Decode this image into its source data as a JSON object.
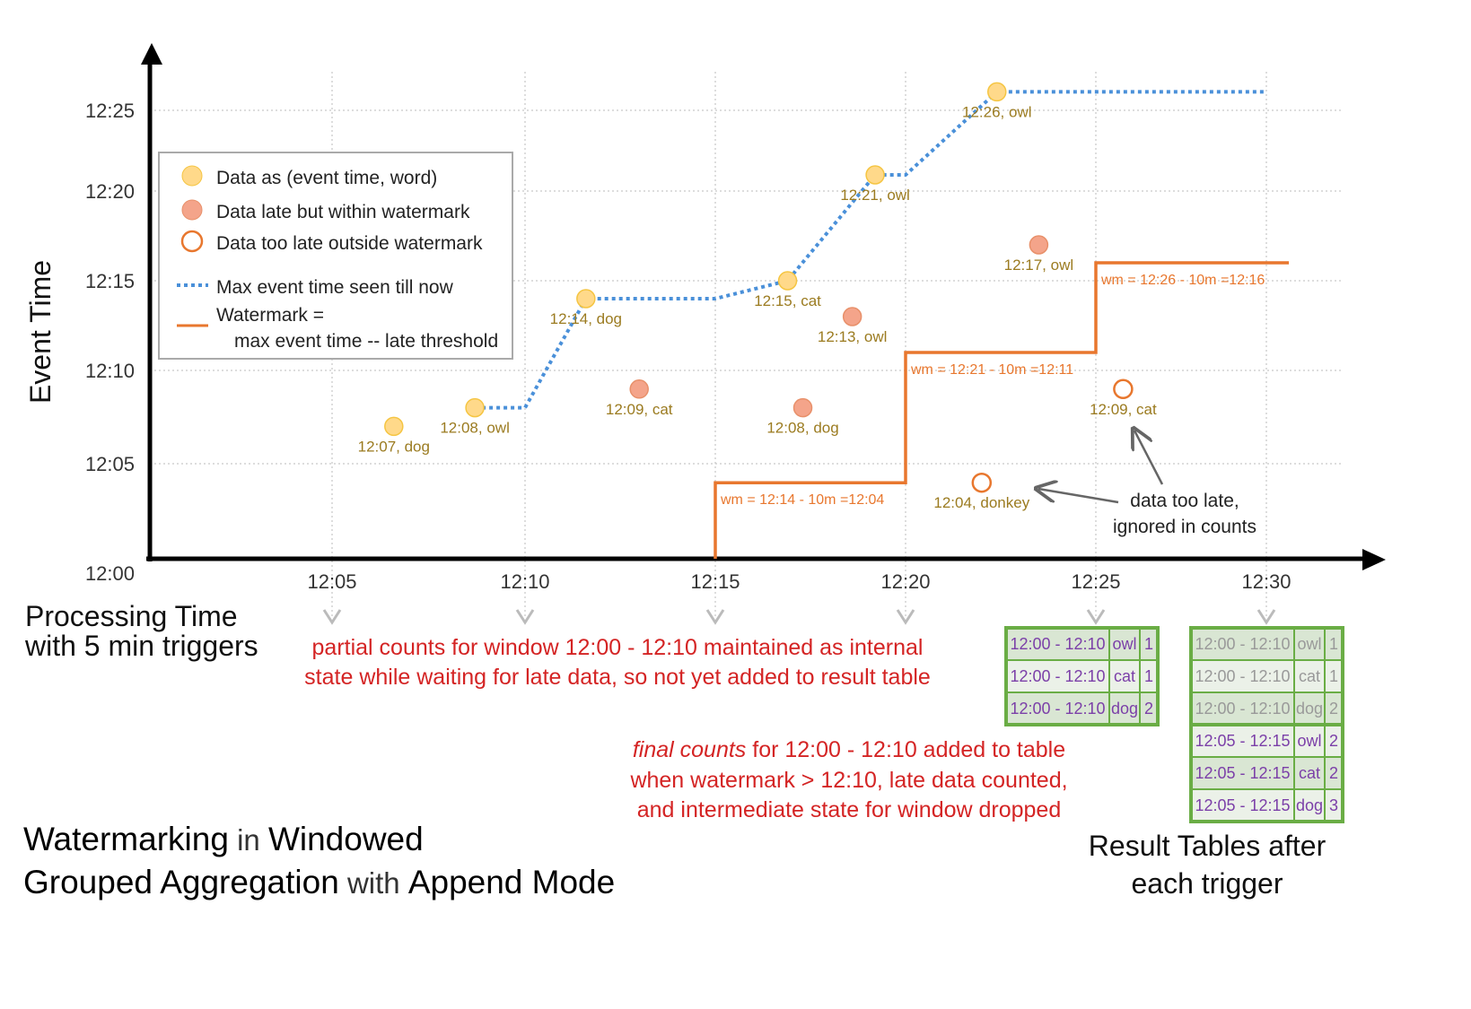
{
  "colors": {
    "on_time": "#ffd98a",
    "late": "#f4a48a",
    "too_late": "#e8772e",
    "max_line": "#4a90d9",
    "watermark": "#e8772e",
    "table_border": "#6aad45",
    "table_fill_a": "#d9e6d3",
    "table_fill_b": "#ebf1e8",
    "table_text": "#7b3fa8",
    "table_text_old": "#999999",
    "note_red": "#d42424"
  },
  "axes": {
    "y_label": "Event Time",
    "x_label_lines": [
      "Processing Time",
      "with 5 min triggers"
    ],
    "y_ticks": [
      "12:00",
      "12:05",
      "12:10",
      "12:15",
      "12:20",
      "12:25"
    ],
    "x_ticks": [
      "12:05",
      "12:10",
      "12:15",
      "12:20",
      "12:25",
      "12:30"
    ]
  },
  "legend": {
    "items": [
      {
        "type": "on_time",
        "label": "Data as (event time, word)"
      },
      {
        "type": "late",
        "label": "Data late but within watermark"
      },
      {
        "type": "too_late",
        "label": "Data too late outside watermark"
      },
      {
        "type": "max_line",
        "label": "Max event time seen till now"
      },
      {
        "type": "watermark",
        "label": "Watermark ="
      },
      {
        "type": "none",
        "label": "max event time -- late threshold"
      }
    ]
  },
  "chart_data": {
    "type": "scatter",
    "xlabel": "Processing Time",
    "ylabel": "Event Time",
    "points": [
      {
        "proc": 6.6,
        "event": 7,
        "label": "12:07, dog",
        "type": "on_time"
      },
      {
        "proc": 8.7,
        "event": 8,
        "label": "12:08, owl",
        "type": "on_time"
      },
      {
        "proc": 11.6,
        "event": 14,
        "label": "12:14, dog",
        "type": "on_time"
      },
      {
        "proc": 13.0,
        "event": 9,
        "label": "12:09, cat",
        "type": "late"
      },
      {
        "proc": 16.9,
        "event": 15,
        "label": "12:15, cat",
        "type": "on_time"
      },
      {
        "proc": 17.3,
        "event": 8,
        "label": "12:08, dog",
        "type": "late"
      },
      {
        "proc": 18.6,
        "event": 13,
        "label": "12:13, owl",
        "type": "late"
      },
      {
        "proc": 19.2,
        "event": 21,
        "label": "12:21, owl",
        "type": "on_time"
      },
      {
        "proc": 22.4,
        "event": 26,
        "label": "12:26, owl",
        "type": "on_time"
      },
      {
        "proc": 22.0,
        "event": 4,
        "label": "12:04, donkey",
        "type": "too_late"
      },
      {
        "proc": 23.5,
        "event": 17,
        "label": "12:17, owl",
        "type": "late"
      },
      {
        "proc": 25.8,
        "event": 9,
        "label": "12:09, cat",
        "type": "too_late"
      }
    ],
    "max_event_line": [
      [
        8.7,
        8
      ],
      [
        10,
        8
      ],
      [
        11.6,
        14
      ],
      [
        15,
        14
      ],
      [
        16.9,
        15
      ],
      [
        19.2,
        21
      ],
      [
        20,
        21
      ],
      [
        22.4,
        26
      ],
      [
        30,
        26
      ]
    ],
    "watermark_line": [
      [
        15,
        0
      ],
      [
        15,
        4
      ],
      [
        20,
        4
      ],
      [
        20,
        11
      ],
      [
        25,
        11
      ],
      [
        25,
        16
      ],
      [
        30.6,
        16
      ]
    ],
    "watermark_labels": [
      {
        "proc": 15,
        "event": 4,
        "label": "wm = 12:14 - 10m =12:04"
      },
      {
        "proc": 20,
        "event": 11,
        "label": "wm = 12:21 - 10m =12:11"
      },
      {
        "proc": 25,
        "event": 16,
        "label": "wm = 12:26 - 10m =12:16"
      }
    ]
  },
  "annotations": {
    "too_late": [
      "data too late,",
      "ignored in counts"
    ],
    "partial": [
      "partial counts for window 12:00 - 12:10 maintained as internal",
      "state while waiting for late data, so not yet added  to result table"
    ],
    "final_em": "final counts",
    "final": [
      " for 12:00 - 12:10 added to table",
      "when watermark > 12:10, late data counted,",
      "and intermediate state for window dropped"
    ]
  },
  "title": {
    "parts": [
      [
        "Watermarking",
        true
      ],
      [
        " in ",
        false
      ],
      [
        "Windowed",
        true
      ]
    ],
    "parts2": [
      [
        "Grouped Aggregation",
        true
      ],
      [
        " with ",
        false
      ],
      [
        "Append Mode",
        true
      ]
    ]
  },
  "tables_caption": [
    "Result Tables after",
    "each trigger"
  ],
  "tables": [
    {
      "trigger": "12:25",
      "rows": [
        [
          "12:00 - 12:10",
          "owl",
          "1",
          false
        ],
        [
          "12:00 - 12:10",
          "cat",
          "1",
          false
        ],
        [
          "12:00 - 12:10",
          "dog",
          "2",
          false
        ]
      ]
    },
    {
      "trigger": "12:30",
      "rows": [
        [
          "12:00 - 12:10",
          "owl",
          "1",
          true
        ],
        [
          "12:00 - 12:10",
          "cat",
          "1",
          true
        ],
        [
          "12:00 - 12:10",
          "dog",
          "2",
          true
        ],
        [
          "12:05 - 12:15",
          "owl",
          "2",
          false
        ],
        [
          "12:05 - 12:15",
          "cat",
          "2",
          false
        ],
        [
          "12:05 - 12:15",
          "dog",
          "3",
          false
        ]
      ]
    }
  ]
}
